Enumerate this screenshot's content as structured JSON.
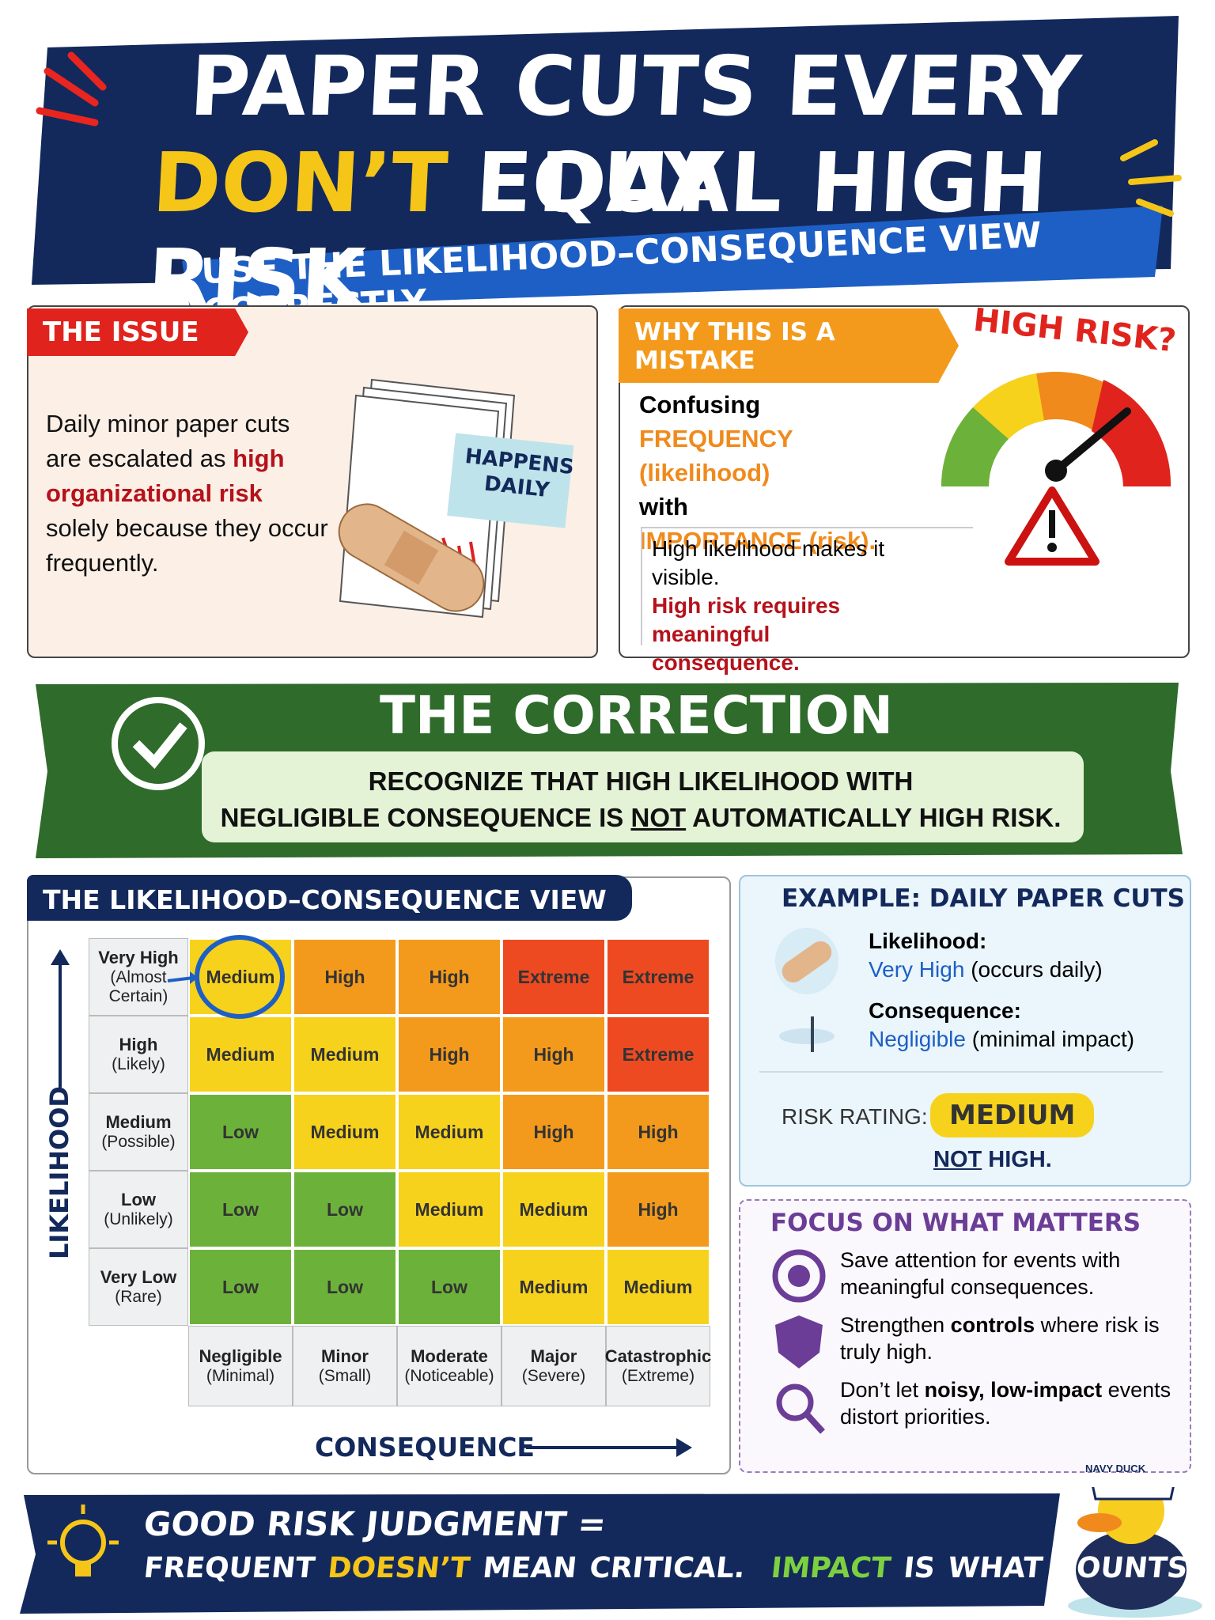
{
  "header": {
    "title_line1": "PAPER CUTS EVERY DAY",
    "title_highlight": "DON’T",
    "title_rest": "EQUAL HIGH RISK",
    "subtitle": "USE THE LIKELIHOOD–CONSEQUENCE VIEW CORRECTLY"
  },
  "issue": {
    "heading": "THE ISSUE",
    "text_before": "Daily minor paper cuts are escalated as",
    "text_emphasis": "high organizational risk",
    "text_after": "solely because they occur frequently.",
    "note": "HAPPENS DAILY"
  },
  "mistake": {
    "heading": "WHY THIS IS A MISTAKE",
    "badge": "HIGH RISK?",
    "line1": "Confusing",
    "line2": "FREQUENCY (likelihood)",
    "line3": "with",
    "line4": "IMPORTANCE (risk).",
    "note": "High likelihood makes it visible.",
    "note_emphasis": "High risk requires meaningful consequence."
  },
  "correction": {
    "heading": "THE CORRECTION",
    "line1": "RECOGNIZE THAT HIGH LIKELIHOOD WITH",
    "line2_before": "NEGLIGIBLE CONSEQUENCE IS",
    "line2_underlined": "NOT",
    "line2_after": "AUTOMATICALLY HIGH RISK."
  },
  "matrix": {
    "heading": "THE LIKELIHOOD–CONSEQUENCE VIEW",
    "y_axis": "LIKELIHOOD",
    "x_axis": "CONSEQUENCE",
    "colors": {
      "Low": "#6cb23a",
      "Medium": "#f7d21c",
      "High": "#f39a1c",
      "Extreme": "#ee4a22"
    },
    "rows": [
      {
        "label": "Very High",
        "sub": "(Almost Certain)",
        "cells": [
          "Medium",
          "High",
          "High",
          "Extreme",
          "Extreme"
        ]
      },
      {
        "label": "High",
        "sub": "(Likely)",
        "cells": [
          "Medium",
          "Medium",
          "High",
          "High",
          "Extreme"
        ]
      },
      {
        "label": "Medium",
        "sub": "(Possible)",
        "cells": [
          "Low",
          "Medium",
          "Medium",
          "High",
          "High"
        ]
      },
      {
        "label": "Low",
        "sub": "(Unlikely)",
        "cells": [
          "Low",
          "Low",
          "Medium",
          "Medium",
          "High"
        ]
      },
      {
        "label": "Very Low",
        "sub": "(Rare)",
        "cells": [
          "Low",
          "Low",
          "Low",
          "Medium",
          "Medium"
        ]
      }
    ],
    "columns": [
      {
        "label": "Negligible",
        "sub": "(Minimal)"
      },
      {
        "label": "Minor",
        "sub": "(Small)"
      },
      {
        "label": "Moderate",
        "sub": "(Noticeable)"
      },
      {
        "label": "Major",
        "sub": "(Severe)"
      },
      {
        "label": "Catastrophic",
        "sub": "(Extreme)"
      }
    ]
  },
  "example": {
    "heading": "EXAMPLE: DAILY PAPER CUTS",
    "likelihood_label": "Likelihood:",
    "likelihood_value": "Very High",
    "likelihood_note": "(occurs daily)",
    "consequence_label": "Consequence:",
    "consequence_value": "Negligible",
    "consequence_note": "(minimal impact)",
    "rating_label": "RISK RATING:",
    "rating": "MEDIUM",
    "not": "NOT",
    "not_rest": "HIGH."
  },
  "focus": {
    "heading": "FOCUS ON WHAT MATTERS",
    "items": [
      {
        "before": "Save attention for events with meaningful consequences."
      },
      {
        "before": "Strengthen",
        "bold": "controls",
        "after": "where risk is truly high."
      },
      {
        "before": "Don’t let",
        "bold": "noisy, low-impact",
        "after": "events distort priorities."
      }
    ]
  },
  "footer": {
    "line1": "GOOD RISK JUDGMENT =",
    "a": "FREQUENT",
    "b": "DOESN’T",
    "c": "MEAN CRITICAL.",
    "d": "IMPACT",
    "e": "IS WHAT COUNTS.",
    "duck_hat": "NAVY DUCK"
  }
}
